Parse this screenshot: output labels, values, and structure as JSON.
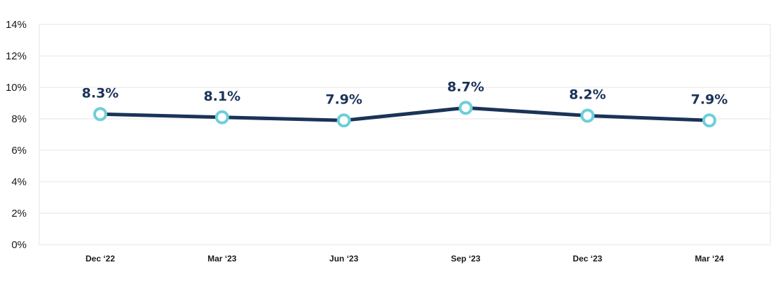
{
  "chart_data": {
    "type": "line",
    "categories": [
      "Dec ‘22",
      "Mar ‘23",
      "Jun ‘23",
      "Sep ‘23",
      "Dec ‘23",
      "Mar ‘24"
    ],
    "series": [
      {
        "values": [
          8.3,
          8.1,
          7.9,
          8.7,
          8.2,
          7.9
        ],
        "data_labels": [
          "8.3%",
          "8.1%",
          "7.9%",
          "8.7%",
          "8.2%",
          "7.9%"
        ]
      }
    ],
    "y_ticks": [
      "0%",
      "2%",
      "4%",
      "6%",
      "8%",
      "10%",
      "12%",
      "14%"
    ],
    "ylim": [
      0,
      14
    ],
    "grid": true,
    "colors": {
      "line": "#1b3358",
      "marker_stroke": "#6dcfd9",
      "marker_fill": "#ffffff",
      "grid": "#e6e6e6",
      "data_label": "#1b3358"
    }
  }
}
